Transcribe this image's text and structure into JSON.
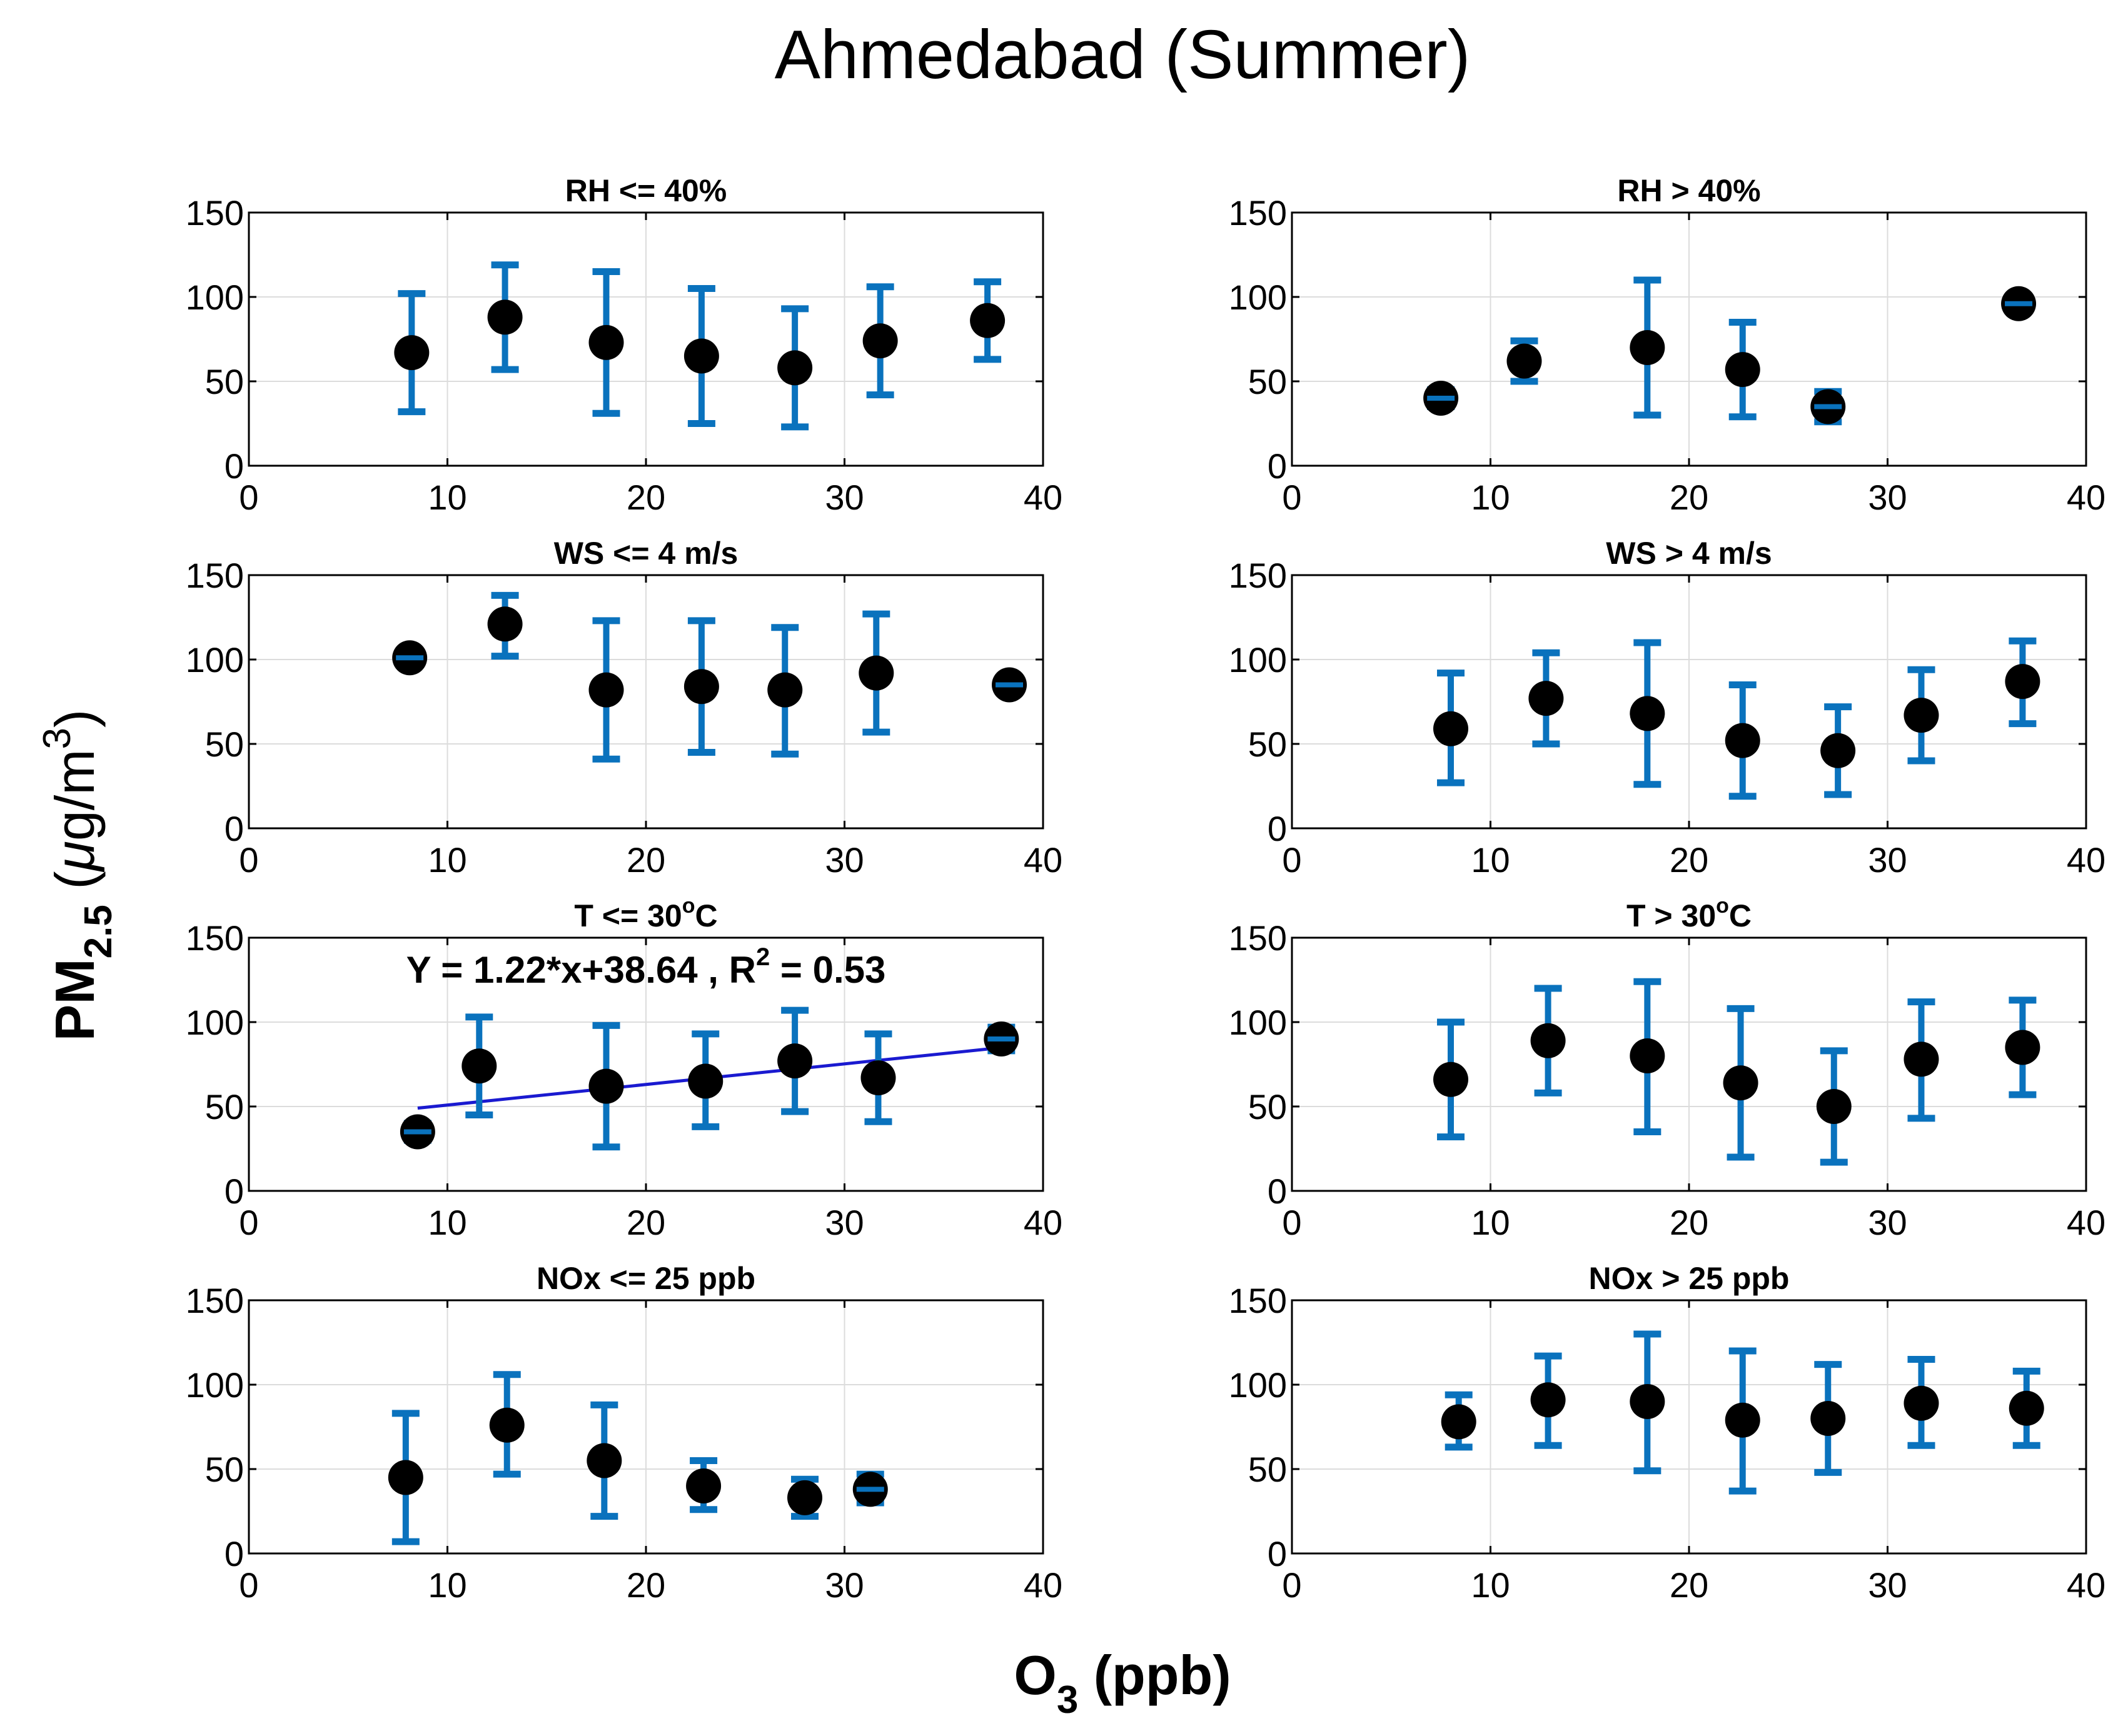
{
  "figure": {
    "title": "Ahmedabad (Summer)",
    "xlabel": {
      "main": "O",
      "sub": "3",
      "rest": " (ppb)"
    },
    "ylabel": {
      "main": "PM",
      "sub": "2.5",
      "unit_open": " (",
      "mu": "μ",
      "unit_mid": "g/m",
      "sup": "3",
      "unit_close": ")"
    },
    "colors": {
      "errorbar": "#0a72bd",
      "marker": "#000000",
      "fit": "#1a1ad0",
      "grid": "#dcdcdc",
      "axes": "#000000"
    }
  },
  "chart_data": [
    {
      "type": "scatter",
      "title": {
        "text": "RH <= 40%"
      },
      "xlim": [
        0,
        40
      ],
      "ylim": [
        0,
        150
      ],
      "xticks": [
        "0",
        "10",
        "20",
        "30",
        "40"
      ],
      "yticks": [
        "0",
        "50",
        "100",
        "150"
      ],
      "grid": true,
      "points": [
        {
          "x": 8.2,
          "y": 67,
          "lo": 32,
          "hi": 102
        },
        {
          "x": 12.9,
          "y": 88,
          "lo": 57,
          "hi": 119
        },
        {
          "x": 18.0,
          "y": 73,
          "lo": 31,
          "hi": 115
        },
        {
          "x": 22.8,
          "y": 65,
          "lo": 25,
          "hi": 105
        },
        {
          "x": 27.5,
          "y": 58,
          "lo": 23,
          "hi": 93
        },
        {
          "x": 31.8,
          "y": 74,
          "lo": 42,
          "hi": 106
        },
        {
          "x": 37.2,
          "y": 86,
          "lo": 63,
          "hi": 109
        }
      ]
    },
    {
      "type": "scatter",
      "title": {
        "text": "RH > 40%"
      },
      "xlim": [
        0,
        40
      ],
      "ylim": [
        0,
        150
      ],
      "xticks": [
        "0",
        "10",
        "20",
        "30",
        "40"
      ],
      "yticks": [
        "0",
        "50",
        "100",
        "150"
      ],
      "grid": true,
      "points": [
        {
          "x": 7.5,
          "y": 40,
          "lo": 35,
          "hi": 45
        },
        {
          "x": 11.7,
          "y": 62,
          "lo": 50,
          "hi": 74
        },
        {
          "x": 17.9,
          "y": 70,
          "lo": 30,
          "hi": 110
        },
        {
          "x": 22.7,
          "y": 57,
          "lo": 29,
          "hi": 85
        },
        {
          "x": 27.0,
          "y": 35,
          "lo": 26,
          "hi": 44
        },
        {
          "x": 36.6,
          "y": 96,
          "lo": 93,
          "hi": 99
        }
      ]
    },
    {
      "type": "scatter",
      "title": {
        "text": "WS <= 4 m/s"
      },
      "xlim": [
        0,
        40
      ],
      "ylim": [
        0,
        150
      ],
      "xticks": [
        "0",
        "10",
        "20",
        "30",
        "40"
      ],
      "yticks": [
        "0",
        "50",
        "100",
        "150"
      ],
      "grid": true,
      "points": [
        {
          "x": 8.1,
          "y": 101,
          "lo": 100,
          "hi": 102
        },
        {
          "x": 12.9,
          "y": 121,
          "lo": 102,
          "hi": 138
        },
        {
          "x": 18.0,
          "y": 82,
          "lo": 41,
          "hi": 123
        },
        {
          "x": 22.8,
          "y": 84,
          "lo": 45,
          "hi": 123
        },
        {
          "x": 27.0,
          "y": 82,
          "lo": 44,
          "hi": 119
        },
        {
          "x": 31.6,
          "y": 92,
          "lo": 57,
          "hi": 127
        },
        {
          "x": 38.3,
          "y": 85,
          "lo": 83,
          "hi": 87
        }
      ]
    },
    {
      "type": "scatter",
      "title": {
        "text": "WS > 4 m/s"
      },
      "xlim": [
        0,
        40
      ],
      "ylim": [
        0,
        150
      ],
      "xticks": [
        "0",
        "10",
        "20",
        "30",
        "40"
      ],
      "yticks": [
        "0",
        "50",
        "100",
        "150"
      ],
      "grid": true,
      "points": [
        {
          "x": 8.0,
          "y": 59,
          "lo": 27,
          "hi": 92
        },
        {
          "x": 12.8,
          "y": 77,
          "lo": 50,
          "hi": 104
        },
        {
          "x": 17.9,
          "y": 68,
          "lo": 26,
          "hi": 110
        },
        {
          "x": 22.7,
          "y": 52,
          "lo": 19,
          "hi": 85
        },
        {
          "x": 27.5,
          "y": 46,
          "lo": 20,
          "hi": 72
        },
        {
          "x": 31.7,
          "y": 67,
          "lo": 40,
          "hi": 94
        },
        {
          "x": 36.8,
          "y": 87,
          "lo": 62,
          "hi": 111
        }
      ]
    },
    {
      "type": "scatter",
      "title": {
        "text": "T <= 30",
        "deg": "o",
        "unit": "C"
      },
      "equation": {
        "text": "Y = 1.22*x+38.64 , R",
        "sup": "2",
        "rest": " = 0.53"
      },
      "fit": {
        "slope": 1.22,
        "intercept": 38.64,
        "r2": 0.53,
        "x_range": [
          8.5,
          37.5
        ]
      },
      "xlim": [
        0,
        40
      ],
      "ylim": [
        0,
        150
      ],
      "xticks": [
        "0",
        "10",
        "20",
        "30",
        "40"
      ],
      "yticks": [
        "0",
        "50",
        "100",
        "150"
      ],
      "grid": true,
      "points": [
        {
          "x": 8.5,
          "y": 35,
          "lo": 30,
          "hi": 40
        },
        {
          "x": 11.6,
          "y": 74,
          "lo": 45,
          "hi": 103
        },
        {
          "x": 18.0,
          "y": 62,
          "lo": 26,
          "hi": 98
        },
        {
          "x": 23.0,
          "y": 65,
          "lo": 38,
          "hi": 93
        },
        {
          "x": 27.5,
          "y": 77,
          "lo": 47,
          "hi": 107
        },
        {
          "x": 31.7,
          "y": 67,
          "lo": 41,
          "hi": 93
        },
        {
          "x": 37.9,
          "y": 90,
          "lo": 83,
          "hi": 97
        }
      ]
    },
    {
      "type": "scatter",
      "title": {
        "text": "T > 30",
        "deg": "o",
        "unit": "C"
      },
      "xlim": [
        0,
        40
      ],
      "ylim": [
        0,
        150
      ],
      "xticks": [
        "0",
        "10",
        "20",
        "30",
        "40"
      ],
      "yticks": [
        "0",
        "50",
        "100",
        "150"
      ],
      "grid": true,
      "points": [
        {
          "x": 8.0,
          "y": 66,
          "lo": 32,
          "hi": 100
        },
        {
          "x": 12.9,
          "y": 89,
          "lo": 58,
          "hi": 120
        },
        {
          "x": 17.9,
          "y": 80,
          "lo": 35,
          "hi": 124
        },
        {
          "x": 22.6,
          "y": 64,
          "lo": 20,
          "hi": 108
        },
        {
          "x": 27.3,
          "y": 50,
          "lo": 17,
          "hi": 83
        },
        {
          "x": 31.7,
          "y": 78,
          "lo": 43,
          "hi": 112
        },
        {
          "x": 36.8,
          "y": 85,
          "lo": 57,
          "hi": 113
        }
      ]
    },
    {
      "type": "scatter",
      "title": {
        "text": "NOx <= 25 ppb"
      },
      "xlim": [
        0,
        40
      ],
      "ylim": [
        0,
        150
      ],
      "xticks": [
        "0",
        "10",
        "20",
        "30",
        "40"
      ],
      "yticks": [
        "0",
        "50",
        "100",
        "150"
      ],
      "grid": true,
      "points": [
        {
          "x": 7.9,
          "y": 45,
          "lo": 7,
          "hi": 83
        },
        {
          "x": 13.0,
          "y": 76,
          "lo": 47,
          "hi": 106
        },
        {
          "x": 17.9,
          "y": 55,
          "lo": 22,
          "hi": 88
        },
        {
          "x": 22.9,
          "y": 40,
          "lo": 26,
          "hi": 55
        },
        {
          "x": 28.0,
          "y": 33,
          "lo": 22,
          "hi": 44
        },
        {
          "x": 31.3,
          "y": 38,
          "lo": 30,
          "hi": 47
        }
      ]
    },
    {
      "type": "scatter",
      "title": {
        "text": "NOx > 25 ppb"
      },
      "xlim": [
        0,
        40
      ],
      "ylim": [
        0,
        150
      ],
      "xticks": [
        "0",
        "10",
        "20",
        "30",
        "40"
      ],
      "yticks": [
        "0",
        "50",
        "100",
        "150"
      ],
      "grid": true,
      "points": [
        {
          "x": 8.4,
          "y": 78,
          "lo": 63,
          "hi": 94
        },
        {
          "x": 12.9,
          "y": 91,
          "lo": 64,
          "hi": 117
        },
        {
          "x": 17.9,
          "y": 90,
          "lo": 49,
          "hi": 130
        },
        {
          "x": 22.7,
          "y": 79,
          "lo": 37,
          "hi": 120
        },
        {
          "x": 27.0,
          "y": 80,
          "lo": 48,
          "hi": 112
        },
        {
          "x": 31.7,
          "y": 89,
          "lo": 64,
          "hi": 115
        },
        {
          "x": 37.0,
          "y": 86,
          "lo": 64,
          "hi": 108
        }
      ]
    }
  ]
}
